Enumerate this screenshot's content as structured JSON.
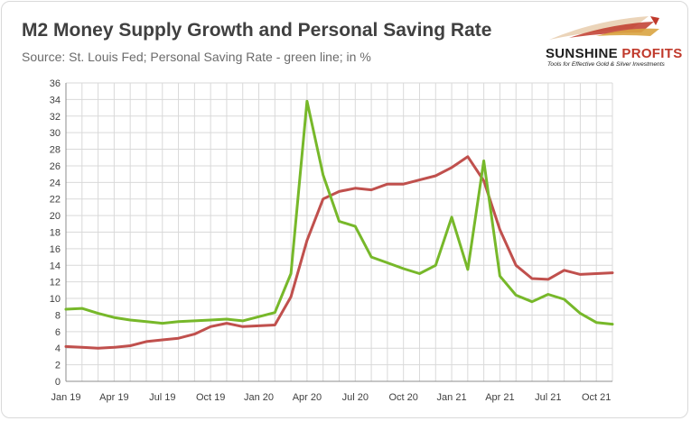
{
  "title": "M2 Money Supply Growth and Personal Saving Rate",
  "subtitle": "Source: St. Louis Fed; Personal Saving Rate - green line; in %",
  "logo": {
    "name_part1": "SUNSHINE",
    "name_part2": "PROFITS",
    "tagline": "Tools for Effective Gold & Silver Investments"
  },
  "colors": {
    "m2": "#c0504d",
    "saving": "#77b82a",
    "grid": "#d9d9d9",
    "axis": "#8c8c8c"
  },
  "chart_data": {
    "type": "line",
    "title": "M2 Money Supply Growth and Personal Saving Rate",
    "xlabel": "",
    "ylabel": "",
    "ylim": [
      0,
      36
    ],
    "ytick_step": 2,
    "grid": true,
    "x": [
      "Jan 19",
      "Feb 19",
      "Mar 19",
      "Apr 19",
      "May 19",
      "Jun 19",
      "Jul 19",
      "Aug 19",
      "Sep 19",
      "Oct 19",
      "Nov 19",
      "Dec 19",
      "Jan 20",
      "Feb 20",
      "Mar 20",
      "Apr 20",
      "May 20",
      "Jun 20",
      "Jul 20",
      "Aug 20",
      "Sep 20",
      "Oct 20",
      "Nov 20",
      "Dec 20",
      "Jan 21",
      "Feb 21",
      "Mar 21",
      "Apr 21",
      "May 21",
      "Jun 21",
      "Jul 21",
      "Aug 21",
      "Sep 21",
      "Oct 21",
      "Nov 21"
    ],
    "x_tick_labels": [
      "Jan 19",
      "Apr 19",
      "Jul 19",
      "Oct 19",
      "Jan 20",
      "Apr 20",
      "Jul 20",
      "Oct 20",
      "Jan 21",
      "Apr 21",
      "Jul 21",
      "Oct 21"
    ],
    "series": [
      {
        "name": "M2 Money Supply Growth",
        "color": "#c0504d",
        "values": [
          4.2,
          4.1,
          4.0,
          4.1,
          4.3,
          4.8,
          5.0,
          5.2,
          5.7,
          6.6,
          7.0,
          6.6,
          6.7,
          6.8,
          10.2,
          17.0,
          22.0,
          22.9,
          23.3,
          23.1,
          23.8,
          23.8,
          24.3,
          24.8,
          25.8,
          27.1,
          24.2,
          18.3,
          14.0,
          12.4,
          12.3,
          13.4,
          12.9,
          13.0,
          13.1
        ]
      },
      {
        "name": "Personal Saving Rate",
        "color": "#77b82a",
        "values": [
          8.7,
          8.8,
          8.2,
          7.7,
          7.4,
          7.2,
          7.0,
          7.2,
          7.3,
          7.4,
          7.5,
          7.3,
          7.8,
          8.3,
          13.0,
          33.8,
          24.9,
          19.3,
          18.7,
          15.0,
          14.3,
          13.6,
          13.0,
          14.0,
          19.8,
          13.5,
          26.6,
          12.7,
          10.4,
          9.6,
          10.5,
          9.9,
          8.2,
          7.1,
          6.9
        ]
      }
    ]
  }
}
